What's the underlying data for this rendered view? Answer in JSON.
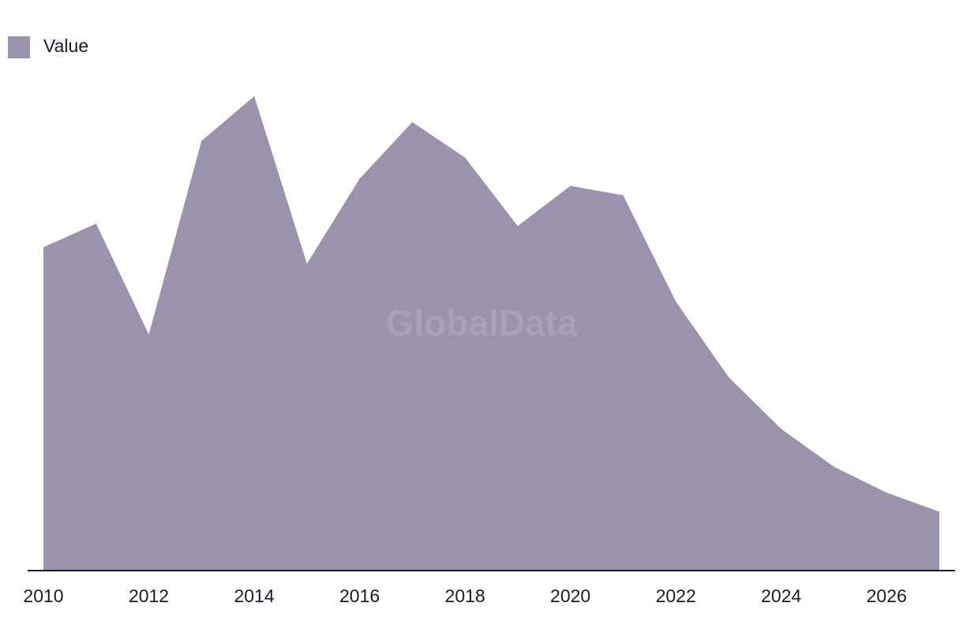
{
  "watermark": "GlobalData",
  "chart_data": {
    "type": "area",
    "title": "",
    "xlabel": "",
    "ylabel": "",
    "x": [
      2010,
      2011,
      2012,
      2013,
      2014,
      2015,
      2016,
      2017,
      2018,
      2019,
      2020,
      2021,
      2022,
      2023,
      2024,
      2025,
      2026,
      2027
    ],
    "x_tick_labels": [
      "2010",
      "2012",
      "2014",
      "2016",
      "2018",
      "2020",
      "2022",
      "2024",
      "2026"
    ],
    "series": [
      {
        "name": "Value",
        "color": "#9b92ab",
        "values": [
          68.5,
          73.5,
          50,
          91,
          100.5,
          65,
          83,
          95,
          87.5,
          73,
          81.5,
          79.5,
          57,
          41,
          30,
          22,
          16.5,
          12.5
        ]
      }
    ],
    "ylim": [
      0,
      110
    ],
    "xlim": [
      2010,
      2027
    ],
    "grid": false,
    "y_axis_visible": false,
    "legend": {
      "position": "top-left"
    },
    "axis_color": "#1a1a2e"
  }
}
